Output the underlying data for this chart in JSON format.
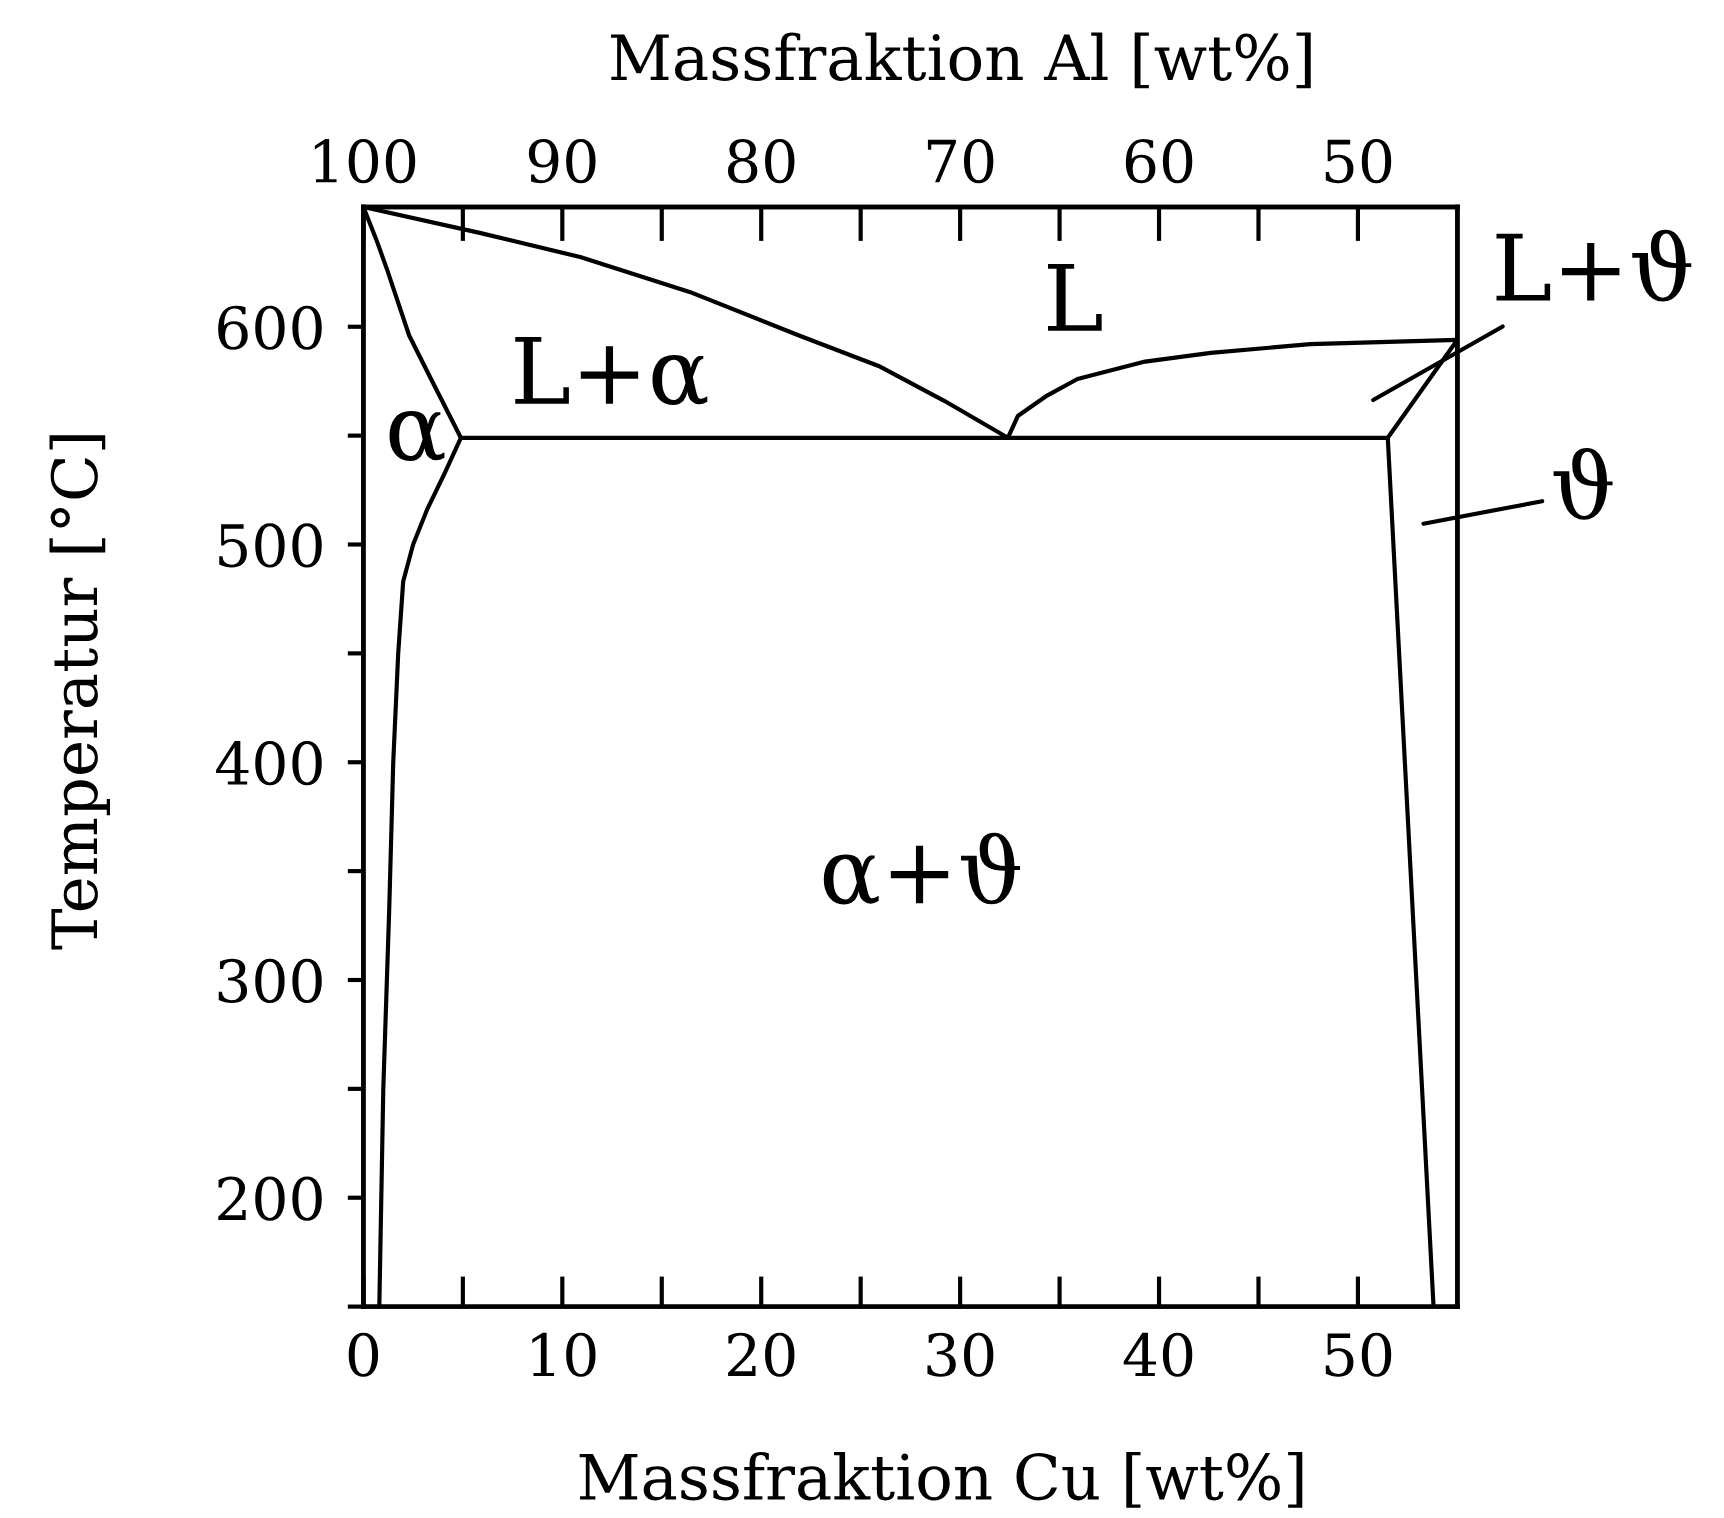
{
  "chart_data": {
    "type": "line",
    "xlabel": "Massfraktion Cu [wt%]",
    "x2label": "Massfraktion Al [wt%]",
    "ylabel": "Temperatur [°C]",
    "xlim": [
      0,
      55
    ],
    "xticks": [
      0,
      {
        "value": 5,
        "label": null
      },
      10,
      {
        "value": 15,
        "label": null
      },
      20,
      {
        "value": 25,
        "label": null
      },
      30,
      {
        "value": 35,
        "label": null
      },
      40,
      {
        "value": 45,
        "label": null
      },
      50
    ],
    "x2lim": [
      100,
      45
    ],
    "x2ticks": [
      100,
      {
        "value": 95,
        "label": null
      },
      90,
      {
        "value": 85,
        "label": null
      },
      80,
      {
        "value": 75,
        "label": null
      },
      70,
      {
        "value": 65,
        "label": null
      },
      60,
      {
        "value": 55,
        "label": null
      },
      50
    ],
    "ylim": [
      150,
      655
    ],
    "yticks": [
      {
        "value": 150,
        "label": null
      },
      200,
      {
        "value": 250,
        "label": null
      },
      300,
      {
        "value": 350,
        "label": null
      },
      400,
      {
        "value": 450,
        "label": null
      },
      500,
      {
        "value": 550,
        "label": null
      },
      600
    ],
    "grid": false,
    "marker": "none",
    "line_style": "solid",
    "series": [
      {
        "color": "#000000",
        "x": [
          0,
          5.9,
          10.9,
          16.4,
          21.9,
          25.9,
          29.2,
          32.4
        ],
        "values": [
          655,
          643,
          632,
          616,
          596,
          582,
          566,
          549
        ]
      },
      {
        "color": "#000000",
        "x": [
          32.4,
          32.9,
          34.3,
          35.9,
          39.3,
          42.6,
          47.6,
          55
        ],
        "values": [
          549,
          559,
          568,
          576,
          584,
          588,
          592,
          594
        ]
      },
      {
        "color": "#000000",
        "x": [
          0,
          0.65,
          1.2,
          2.3,
          3.4,
          4.9
        ],
        "values": [
          655,
          640,
          626,
          596,
          576,
          549
        ]
      },
      {
        "color": "#000000",
        "x": [
          4.9,
          51.5
        ],
        "values": [
          549,
          549
        ]
      },
      {
        "color": "#000000",
        "x": [
          4.9,
          4.1,
          3.2,
          2.5,
          2.0,
          1.75,
          1.5,
          1.3,
          1.0,
          0.8
        ],
        "values": [
          549,
          533,
          516,
          500,
          483,
          450,
          400,
          333,
          250,
          150
        ]
      },
      {
        "color": "#000000",
        "x": [
          55,
          51.5
        ],
        "values": [
          594,
          549
        ]
      },
      {
        "color": "#000000",
        "x": [
          51.5,
          53.8
        ],
        "values": [
          549,
          150
        ]
      }
    ],
    "annotations": [
      "L",
      "L+ϑ",
      "L+α",
      "α",
      "ϑ",
      "α+ϑ"
    ]
  }
}
